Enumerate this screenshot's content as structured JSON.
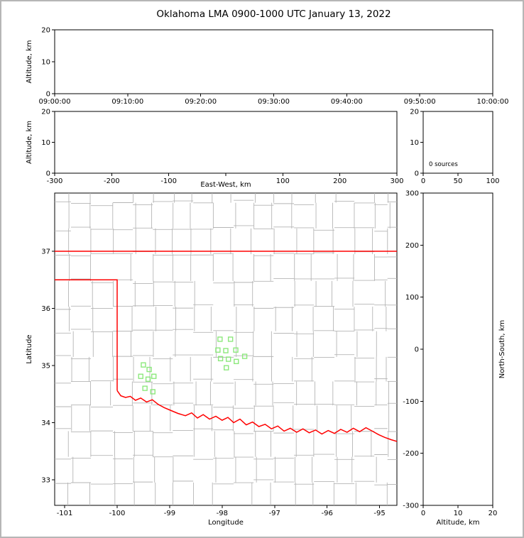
{
  "title": "Oklahoma LMA 0900-1000 UTC January 13, 2022",
  "colors": {
    "axis": "#000000",
    "county_lines": "#b5b5b5",
    "state_boundary": "#ff0000",
    "river": "#ff0000",
    "station_marker": "#8ce87c",
    "background": "#ffffff",
    "frame": "#b6b6b6"
  },
  "chart_data": [
    {
      "id": "time_height",
      "type": "scatter",
      "title": "",
      "xlabel": "",
      "ylabel": "Altitude, km",
      "xticks": [
        "09:00:00",
        "09:10:00",
        "09:20:00",
        "09:30:00",
        "09:40:00",
        "09:50:00",
        "10:00:00"
      ],
      "yticks": [
        0,
        10,
        20
      ],
      "xlim": [
        0,
        1
      ],
      "ylim": [
        0,
        20
      ],
      "points": []
    },
    {
      "id": "ew_height",
      "type": "scatter",
      "title": "",
      "xlabel": "East-West, km",
      "xlabel_offset": 19,
      "ylabel": "Altitude, km",
      "xticks": [
        -300,
        -200,
        -100,
        0,
        100,
        200,
        300
      ],
      "xticklabels": [
        "-300",
        "-200",
        "-100",
        "",
        "100",
        "200",
        "300"
      ],
      "yticks": [
        0,
        10,
        20
      ],
      "xlim": [
        -300,
        300
      ],
      "ylim": [
        0,
        20
      ],
      "points": []
    },
    {
      "id": "alt_histogram",
      "type": "line",
      "title": "",
      "xlabel": "",
      "ylabel": "",
      "annotation": "0 sources",
      "xticks": [
        0,
        50,
        100
      ],
      "yticks": [
        0,
        10,
        20
      ],
      "xlim": [
        0,
        100
      ],
      "ylim": [
        0,
        20
      ],
      "points": []
    },
    {
      "id": "plan_map",
      "type": "scatter",
      "title": "",
      "xlabel": "Longitude",
      "ylabel": "Latitude",
      "xticks": [
        -101,
        -100,
        -99,
        -98,
        -97,
        -96,
        -95
      ],
      "yticks": [
        33,
        34,
        35,
        36,
        37
      ],
      "xlim": [
        -101.19,
        -94.67
      ],
      "ylim": [
        32.55,
        38.02
      ],
      "points": [],
      "stations": [
        [
          -99.5,
          35.01
        ],
        [
          -99.39,
          34.93
        ],
        [
          -99.55,
          34.81
        ],
        [
          -99.41,
          34.76
        ],
        [
          -99.3,
          34.81
        ],
        [
          -99.47,
          34.6
        ],
        [
          -99.32,
          34.54
        ],
        [
          -98.04,
          35.46
        ],
        [
          -97.84,
          35.46
        ],
        [
          -98.08,
          35.27
        ],
        [
          -97.93,
          35.26
        ],
        [
          -97.74,
          35.27
        ],
        [
          -98.03,
          35.12
        ],
        [
          -97.88,
          35.11
        ],
        [
          -97.73,
          35.07
        ],
        [
          -97.57,
          35.16
        ],
        [
          -97.92,
          34.96
        ]
      ],
      "state_boundary": [
        [
          [
            -101.19,
            37.0
          ],
          [
            -94.67,
            37.0
          ]
        ],
        [
          [
            -101.19,
            36.5
          ],
          [
            -100.0,
            36.5
          ],
          [
            -100.0,
            34.56
          ]
        ]
      ],
      "red_river": [
        [
          -100.0,
          34.56
        ],
        [
          -99.93,
          34.47
        ],
        [
          -99.84,
          34.44
        ],
        [
          -99.75,
          34.46
        ],
        [
          -99.65,
          34.39
        ],
        [
          -99.55,
          34.43
        ],
        [
          -99.44,
          34.36
        ],
        [
          -99.33,
          34.4
        ],
        [
          -99.22,
          34.32
        ],
        [
          -99.1,
          34.26
        ],
        [
          -98.97,
          34.21
        ],
        [
          -98.84,
          34.16
        ],
        [
          -98.7,
          34.12
        ],
        [
          -98.58,
          34.17
        ],
        [
          -98.47,
          34.08
        ],
        [
          -98.36,
          34.14
        ],
        [
          -98.24,
          34.06
        ],
        [
          -98.12,
          34.11
        ],
        [
          -98.0,
          34.04
        ],
        [
          -97.89,
          34.09
        ],
        [
          -97.78,
          34.0
        ],
        [
          -97.66,
          34.06
        ],
        [
          -97.54,
          33.96
        ],
        [
          -97.42,
          34.01
        ],
        [
          -97.3,
          33.93
        ],
        [
          -97.18,
          33.97
        ],
        [
          -97.06,
          33.89
        ],
        [
          -96.94,
          33.94
        ],
        [
          -96.82,
          33.85
        ],
        [
          -96.7,
          33.9
        ],
        [
          -96.58,
          33.83
        ],
        [
          -96.46,
          33.89
        ],
        [
          -96.34,
          33.82
        ],
        [
          -96.22,
          33.87
        ],
        [
          -96.1,
          33.8
        ],
        [
          -95.98,
          33.86
        ],
        [
          -95.86,
          33.81
        ],
        [
          -95.74,
          33.88
        ],
        [
          -95.62,
          33.83
        ],
        [
          -95.5,
          33.9
        ],
        [
          -95.38,
          33.84
        ],
        [
          -95.26,
          33.91
        ],
        [
          -95.14,
          33.85
        ],
        [
          -95.02,
          33.79
        ],
        [
          -94.9,
          33.74
        ],
        [
          -94.78,
          33.7
        ],
        [
          -94.67,
          33.67
        ]
      ],
      "county_grid": {
        "lon_lines": [
          -100.88,
          -100.5,
          -100.08,
          -99.7,
          -99.32,
          -98.94,
          -98.55,
          -98.17,
          -97.78,
          -97.4,
          -97.02,
          -96.63,
          -96.25,
          -95.86,
          -95.48,
          -95.1,
          -94.85
        ],
        "lat_lines": [
          32.95,
          33.4,
          33.85,
          34.3,
          34.72,
          35.15,
          35.6,
          36.03,
          36.48,
          36.95,
          37.4,
          37.85
        ],
        "jitter_lon": 0.12,
        "jitter_lat": 0.1,
        "skip": 0.1
      }
    },
    {
      "id": "ns_height",
      "type": "scatter",
      "title": "",
      "xlabel": "Altitude, km",
      "ylabel": "North-South, km",
      "ylabel_side": "right",
      "xticks": [
        0,
        10,
        20
      ],
      "yticks": [
        300,
        200,
        100,
        0,
        -100,
        -200,
        -300
      ],
      "xlim": [
        0,
        20
      ],
      "ylim": [
        -300,
        300
      ],
      "points": []
    }
  ]
}
